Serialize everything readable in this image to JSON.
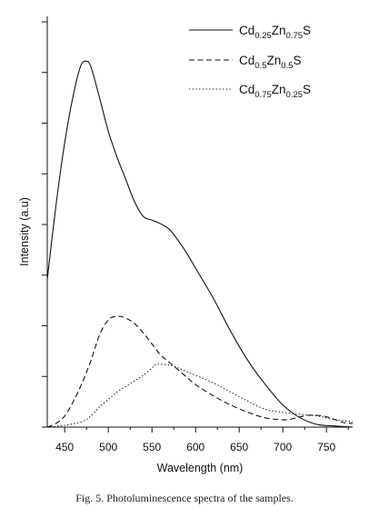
{
  "caption": "Fig. 5. Photoluminescence spectra of the samples.",
  "chart_data": {
    "type": "line",
    "title": "",
    "xlabel": "Wavelength (nm)",
    "ylabel": "Intensity (a.u)",
    "xlim": [
      430,
      780
    ],
    "ylim": [
      0,
      1
    ],
    "x_ticks": [
      450,
      500,
      550,
      600,
      650,
      700,
      750
    ],
    "y_ticks_shown_without_labels": true,
    "grid": false,
    "legend_position": "top-right",
    "series": [
      {
        "name": "Cd0.25Zn0.75S",
        "legend_parts": [
          [
            "Cd",
            ""
          ],
          [
            "0.25",
            "sub"
          ],
          [
            "Zn",
            ""
          ],
          [
            "0.75",
            "sub"
          ],
          [
            "S",
            ""
          ]
        ],
        "style": "solid",
        "x": [
          430,
          440,
          450,
          460,
          468,
          474,
          480,
          490,
          500,
          510,
          520,
          530,
          540,
          550,
          560,
          570,
          580,
          590,
          600,
          620,
          640,
          660,
          680,
          700,
          720,
          740,
          760,
          780
        ],
        "y": [
          0.4,
          0.6,
          0.77,
          0.9,
          0.975,
          0.99,
          0.975,
          0.89,
          0.8,
          0.73,
          0.67,
          0.61,
          0.57,
          0.56,
          0.55,
          0.535,
          0.505,
          0.47,
          0.43,
          0.35,
          0.26,
          0.18,
          0.115,
          0.06,
          0.025,
          0.007,
          0.003,
          0.0
        ]
      },
      {
        "name": "Cd0.5Zn0.5S",
        "legend_parts": [
          [
            "Cd",
            ""
          ],
          [
            "0.5",
            "sub"
          ],
          [
            "Zn",
            ""
          ],
          [
            "0.5",
            "sub"
          ],
          [
            "S",
            ""
          ]
        ],
        "style": "dashed",
        "x": [
          430,
          440,
          450,
          460,
          470,
          480,
          490,
          500,
          510,
          520,
          530,
          540,
          550,
          560,
          570,
          580,
          590,
          600,
          620,
          640,
          660,
          680,
          700,
          710,
          720,
          730,
          740,
          750,
          760,
          770,
          780
        ],
        "y": [
          0.0,
          0.01,
          0.03,
          0.07,
          0.12,
          0.18,
          0.25,
          0.29,
          0.3,
          0.295,
          0.28,
          0.255,
          0.225,
          0.195,
          0.175,
          0.155,
          0.135,
          0.115,
          0.085,
          0.06,
          0.04,
          0.025,
          0.02,
          0.022,
          0.028,
          0.032,
          0.032,
          0.028,
          0.02,
          0.012,
          0.01
        ]
      },
      {
        "name": "Cd0.75Zn0.25S",
        "legend_parts": [
          [
            "Cd",
            ""
          ],
          [
            "0.75",
            "sub"
          ],
          [
            "Zn",
            ""
          ],
          [
            "0.25",
            "sub"
          ],
          [
            "S",
            ""
          ]
        ],
        "style": "dotted",
        "x": [
          430,
          450,
          470,
          480,
          490,
          500,
          510,
          520,
          530,
          540,
          550,
          555,
          560,
          570,
          580,
          590,
          600,
          620,
          640,
          660,
          680,
          700,
          720,
          740,
          760,
          780
        ],
        "y": [
          0.0,
          0.005,
          0.015,
          0.03,
          0.055,
          0.075,
          0.095,
          0.11,
          0.125,
          0.14,
          0.16,
          0.17,
          0.17,
          0.168,
          0.16,
          0.15,
          0.14,
          0.12,
          0.095,
          0.07,
          0.048,
          0.04,
          0.035,
          0.03,
          0.02,
          0.015
        ]
      }
    ]
  }
}
